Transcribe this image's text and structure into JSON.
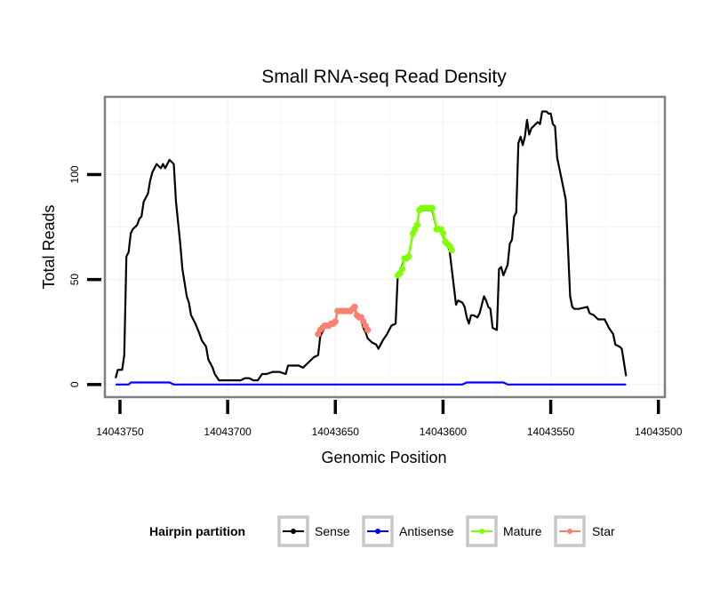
{
  "chart_data": {
    "type": "line",
    "title": "Small RNA-seq Read Density",
    "xlabel": "Genomic Position",
    "ylabel": "Total Reads",
    "x_reversed": true,
    "xlim": [
      14043757,
      14043497
    ],
    "ylim": [
      -6,
      137
    ],
    "x_ticks": [
      14043750,
      14043700,
      14043650,
      14043600,
      14043550,
      14043500
    ],
    "x_tick_labels": [
      "14043750",
      "14043700",
      "14043650",
      "14043600",
      "14043550",
      "14043500"
    ],
    "y_ticks": [
      0,
      50,
      100
    ],
    "y_tick_labels": [
      "0",
      "50",
      "100"
    ],
    "grid": true,
    "legend": {
      "title": "Hairpin partition",
      "placement": "bottom",
      "entries": [
        {
          "name": "Sense",
          "color": "#000000"
        },
        {
          "name": "Antisense",
          "color": "#0000ff"
        },
        {
          "name": "Mature",
          "color": "#7fff00"
        },
        {
          "name": "Star",
          "color": "#fa8072"
        }
      ]
    },
    "series": [
      {
        "name": "Sense",
        "color": "#000000",
        "marker": false,
        "points": [
          [
            14043752,
            3
          ],
          [
            14043751,
            7
          ],
          [
            14043749,
            7
          ],
          [
            14043748,
            14
          ],
          [
            14043747,
            61
          ],
          [
            14043746,
            63
          ],
          [
            14043745,
            72
          ],
          [
            14043744,
            74
          ],
          [
            14043742,
            76
          ],
          [
            14043741,
            79
          ],
          [
            14043740,
            80
          ],
          [
            14043739,
            87
          ],
          [
            14043737,
            91
          ],
          [
            14043736,
            97
          ],
          [
            14043735,
            101
          ],
          [
            14043733,
            105
          ],
          [
            14043732,
            104
          ],
          [
            14043731,
            103
          ],
          [
            14043730,
            105
          ],
          [
            14043729,
            103
          ],
          [
            14043728,
            105
          ],
          [
            14043727,
            107
          ],
          [
            14043725,
            105
          ],
          [
            14043724,
            87
          ],
          [
            14043722,
            67
          ],
          [
            14043721,
            55
          ],
          [
            14043719,
            42
          ],
          [
            14043718,
            39
          ],
          [
            14043717,
            33
          ],
          [
            14043715,
            29
          ],
          [
            14043713,
            24
          ],
          [
            14043712,
            21
          ],
          [
            14043710,
            18
          ],
          [
            14043709,
            12
          ],
          [
            14043707,
            8
          ],
          [
            14043706,
            5
          ],
          [
            14043704,
            2
          ],
          [
            14043701,
            2
          ],
          [
            14043694,
            2
          ],
          [
            14043692,
            3
          ],
          [
            14043690,
            3
          ],
          [
            14043688,
            2
          ],
          [
            14043686,
            2
          ],
          [
            14043684,
            5
          ],
          [
            14043682,
            5
          ],
          [
            14043679,
            6
          ],
          [
            14043676,
            6
          ],
          [
            14043673,
            5
          ],
          [
            14043672,
            9
          ],
          [
            14043667,
            9
          ],
          [
            14043665,
            8
          ],
          [
            14043663,
            10
          ],
          [
            14043660,
            13
          ],
          [
            14043658,
            14
          ],
          [
            14043657,
            23
          ],
          [
            14043655,
            27
          ],
          [
            14043652,
            29
          ],
          [
            14043650,
            30
          ],
          [
            14043649,
            35
          ],
          [
            14043644,
            35
          ],
          [
            14043641,
            36
          ],
          [
            14043640,
            33
          ],
          [
            14043638,
            31
          ],
          [
            14043637,
            27
          ],
          [
            14043636,
            25
          ],
          [
            14043635,
            22
          ],
          [
            14043633,
            20
          ],
          [
            14043631,
            19
          ],
          [
            14043630,
            17
          ],
          [
            14043628,
            21
          ],
          [
            14043626,
            24
          ],
          [
            14043624,
            28
          ],
          [
            14043622,
            29
          ],
          [
            14043621,
            52
          ],
          [
            14043620,
            53
          ],
          [
            14043618,
            60
          ],
          [
            14043616,
            61
          ],
          [
            14043614,
            72
          ],
          [
            14043612,
            76
          ],
          [
            14043611,
            83
          ],
          [
            14043605,
            83
          ],
          [
            14043603,
            74
          ],
          [
            14043601,
            74
          ],
          [
            14043599,
            68
          ],
          [
            14043597,
            64
          ],
          [
            14043595,
            47
          ],
          [
            14043594,
            38
          ],
          [
            14043593,
            40
          ],
          [
            14043591,
            39
          ],
          [
            14043590,
            37
          ],
          [
            14043589,
            32
          ],
          [
            14043588,
            29
          ],
          [
            14043587,
            33
          ],
          [
            14043586,
            33
          ],
          [
            14043584,
            32
          ],
          [
            14043583,
            34
          ],
          [
            14043581,
            42
          ],
          [
            14043580,
            40
          ],
          [
            14043579,
            37
          ],
          [
            14043578,
            36
          ],
          [
            14043577,
            27
          ],
          [
            14043575,
            26
          ],
          [
            14043574,
            55
          ],
          [
            14043573,
            56
          ],
          [
            14043572,
            52
          ],
          [
            14043570,
            57
          ],
          [
            14043569,
            67
          ],
          [
            14043568,
            69
          ],
          [
            14043567,
            80
          ],
          [
            14043566,
            82
          ],
          [
            14043565,
            115
          ],
          [
            14043564,
            118
          ],
          [
            14043563,
            114
          ],
          [
            14043562,
            118
          ],
          [
            14043561,
            126
          ],
          [
            14043560,
            119
          ],
          [
            14043559,
            122
          ],
          [
            14043557,
            124
          ],
          [
            14043556,
            125
          ],
          [
            14043555,
            124
          ],
          [
            14043554,
            130
          ],
          [
            14043552,
            130
          ],
          [
            14043551,
            129
          ],
          [
            14043550,
            129
          ],
          [
            14043549,
            124
          ],
          [
            14043548,
            123
          ],
          [
            14043547,
            108
          ],
          [
            14043545,
            98
          ],
          [
            14043543,
            88
          ],
          [
            14043542,
            65
          ],
          [
            14043541,
            42
          ],
          [
            14043540,
            37
          ],
          [
            14043539,
            36
          ],
          [
            14043537,
            36
          ],
          [
            14043533,
            37
          ],
          [
            14043532,
            34
          ],
          [
            14043530,
            33
          ],
          [
            14043528,
            31
          ],
          [
            14043525,
            31
          ],
          [
            14043523,
            27
          ],
          [
            14043521,
            24
          ],
          [
            14043520,
            19
          ],
          [
            14043518,
            18
          ],
          [
            14043517,
            17
          ],
          [
            14043515,
            4
          ]
        ]
      },
      {
        "name": "Antisense",
        "color": "#0000ff",
        "marker": false,
        "points": [
          [
            14043752,
            0
          ],
          [
            14043746,
            0
          ],
          [
            14043745,
            1
          ],
          [
            14043727,
            1
          ],
          [
            14043725,
            0
          ],
          [
            14043591,
            0
          ],
          [
            14043589,
            1
          ],
          [
            14043572,
            1
          ],
          [
            14043570,
            0
          ],
          [
            14043515,
            0
          ]
        ]
      },
      {
        "name": "Star",
        "color": "#fa8072",
        "marker": true,
        "points": [
          [
            14043658,
            24
          ],
          [
            14043657,
            26
          ],
          [
            14043656,
            27
          ],
          [
            14043655,
            28
          ],
          [
            14043654,
            28
          ],
          [
            14043653,
            28
          ],
          [
            14043652,
            29
          ],
          [
            14043651,
            29
          ],
          [
            14043650,
            30
          ],
          [
            14043649,
            35
          ],
          [
            14043648,
            35
          ],
          [
            14043647,
            35
          ],
          [
            14043646,
            35
          ],
          [
            14043645,
            35
          ],
          [
            14043644,
            35
          ],
          [
            14043643,
            35
          ],
          [
            14043642,
            36
          ],
          [
            14043641,
            37
          ],
          [
            14043640,
            33
          ],
          [
            14043639,
            32
          ],
          [
            14043638,
            32
          ],
          [
            14043637,
            30
          ],
          [
            14043636,
            28
          ],
          [
            14043635,
            26
          ]
        ]
      },
      {
        "name": "Mature",
        "color": "#7fff00",
        "marker": true,
        "points": [
          [
            14043621,
            52
          ],
          [
            14043620,
            53
          ],
          [
            14043619,
            55
          ],
          [
            14043618,
            60
          ],
          [
            14043617,
            60
          ],
          [
            14043616,
            61
          ],
          [
            14043614,
            72
          ],
          [
            14043613,
            74
          ],
          [
            14043612,
            76
          ],
          [
            14043611,
            83
          ],
          [
            14043610,
            84
          ],
          [
            14043609,
            84
          ],
          [
            14043608,
            84
          ],
          [
            14043607,
            84
          ],
          [
            14043606,
            84
          ],
          [
            14043605,
            84
          ],
          [
            14043603,
            74
          ],
          [
            14043602,
            74
          ],
          [
            14043601,
            74
          ],
          [
            14043600,
            72
          ],
          [
            14043599,
            68
          ],
          [
            14043598,
            67
          ],
          [
            14043597,
            66
          ],
          [
            14043596,
            64
          ]
        ]
      }
    ]
  }
}
